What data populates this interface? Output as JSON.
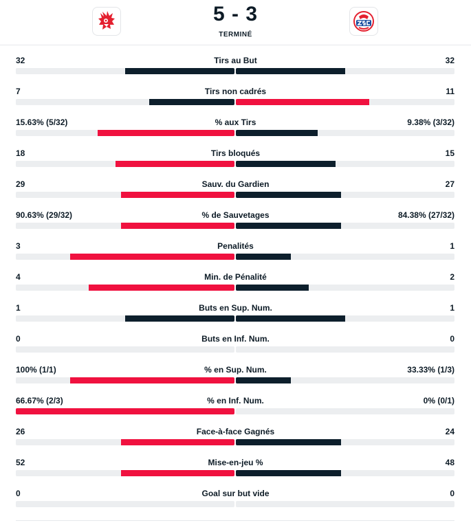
{
  "match": {
    "score": "5 - 3",
    "status": "TERMINÉ",
    "home_logo_icon": "lions-crest-icon",
    "away_logo_icon": "zsc-lions-crest-icon"
  },
  "colors": {
    "red": "#f0113f",
    "dark": "#0d1f2c",
    "track": "#eceef0"
  },
  "stats": [
    {
      "label": "Tirs au But",
      "home": "32",
      "away": "32",
      "home_share": 0.5,
      "away_share": 0.5,
      "leader": "tie"
    },
    {
      "label": "Tirs non cadrés",
      "home": "7",
      "away": "11",
      "home_share": 0.3889,
      "away_share": 0.6111,
      "leader": "away"
    },
    {
      "label": "% aux Tirs",
      "home": "15.63% (5/32)",
      "away": "9.38% (3/32)",
      "home_share": 0.625,
      "away_share": 0.375,
      "leader": "home"
    },
    {
      "label": "Tirs bloqués",
      "home": "18",
      "away": "15",
      "home_share": 0.5455,
      "away_share": 0.4545,
      "leader": "home"
    },
    {
      "label": "Sauv. du Gardien",
      "home": "29",
      "away": "27",
      "home_share": 0.5179,
      "away_share": 0.4821,
      "leader": "home"
    },
    {
      "label": "% de Sauvetages",
      "home": "90.63% (29/32)",
      "away": "84.38% (27/32)",
      "home_share": 0.5179,
      "away_share": 0.4821,
      "leader": "home"
    },
    {
      "label": "Penalités",
      "home": "3",
      "away": "1",
      "home_share": 0.75,
      "away_share": 0.25,
      "leader": "home"
    },
    {
      "label": "Min. de Pénalité",
      "home": "4",
      "away": "2",
      "home_share": 0.6667,
      "away_share": 0.3333,
      "leader": "home"
    },
    {
      "label": "Buts en Sup. Num.",
      "home": "1",
      "away": "1",
      "home_share": 0.5,
      "away_share": 0.5,
      "leader": "tie"
    },
    {
      "label": "Buts en Inf. Num.",
      "home": "0",
      "away": "0",
      "home_share": 0,
      "away_share": 0,
      "leader": "tie"
    },
    {
      "label": "% en Sup. Num.",
      "home": "100% (1/1)",
      "away": "33.33% (1/3)",
      "home_share": 0.75,
      "away_share": 0.25,
      "leader": "home"
    },
    {
      "label": "% en Inf. Num.",
      "home": "66.67% (2/3)",
      "away": "0% (0/1)",
      "home_share": 1,
      "away_share": 0,
      "leader": "home"
    },
    {
      "label": "Face-à-face Gagnés",
      "home": "26",
      "away": "24",
      "home_share": 0.52,
      "away_share": 0.48,
      "leader": "home"
    },
    {
      "label": "Mise-en-jeu %",
      "home": "52",
      "away": "48",
      "home_share": 0.52,
      "away_share": 0.48,
      "leader": "home"
    },
    {
      "label": "Goal sur but vide",
      "home": "0",
      "away": "0",
      "home_share": 0,
      "away_share": 0,
      "leader": "tie"
    }
  ]
}
